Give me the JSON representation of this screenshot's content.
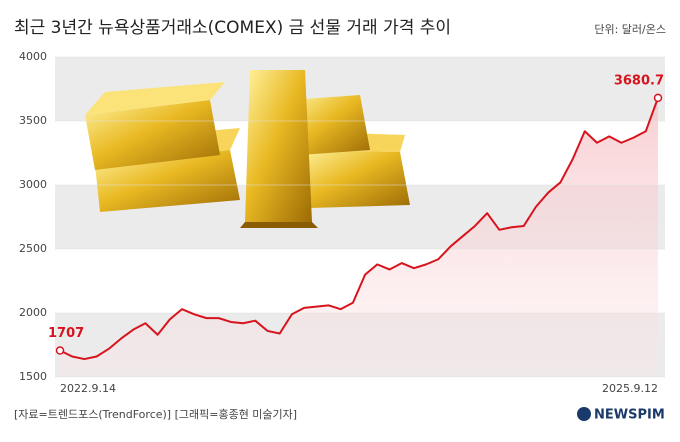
{
  "chart_data": {
    "type": "line",
    "title": "최근 3년간 뉴욕상품거래소(COMEX) 금 선물 거래 가격 추이",
    "unit_label": "단위: 달러/온스",
    "source": "[자료=트렌드포스(TrendForce)] [그래픽=홍종현 미술기자]",
    "logo": "NEWSPIM",
    "categories": [
      "2022.9.14",
      null,
      null,
      null,
      null,
      null,
      null,
      null,
      null,
      null,
      null,
      null,
      null,
      null,
      null,
      null,
      null,
      null,
      null,
      null,
      null,
      null,
      null,
      null,
      null,
      null,
      null,
      null,
      null,
      null,
      null,
      null,
      null,
      null,
      null,
      null,
      null,
      null,
      null,
      null,
      null,
      null,
      null,
      null,
      null,
      null,
      null,
      null,
      null,
      "2025.9.12"
    ],
    "values": [
      1707,
      1660,
      1640,
      1660,
      1720,
      1800,
      1870,
      1920,
      1830,
      1950,
      2030,
      1990,
      1960,
      1960,
      1930,
      1920,
      1940,
      1860,
      1840,
      1990,
      2040,
      2050,
      2060,
      2030,
      2080,
      2300,
      2380,
      2340,
      2390,
      2350,
      2380,
      2420,
      2520,
      2600,
      2680,
      2780,
      2650,
      2670,
      2680,
      2830,
      2940,
      3020,
      3200,
      3420,
      3330,
      3380,
      3330,
      3370,
      3420,
      3680.7
    ],
    "color": "#d7141e",
    "ylim": [
      1500,
      4000
    ],
    "yticks": [
      1500,
      2000,
      2500,
      3000,
      3500,
      4000
    ]
  }
}
